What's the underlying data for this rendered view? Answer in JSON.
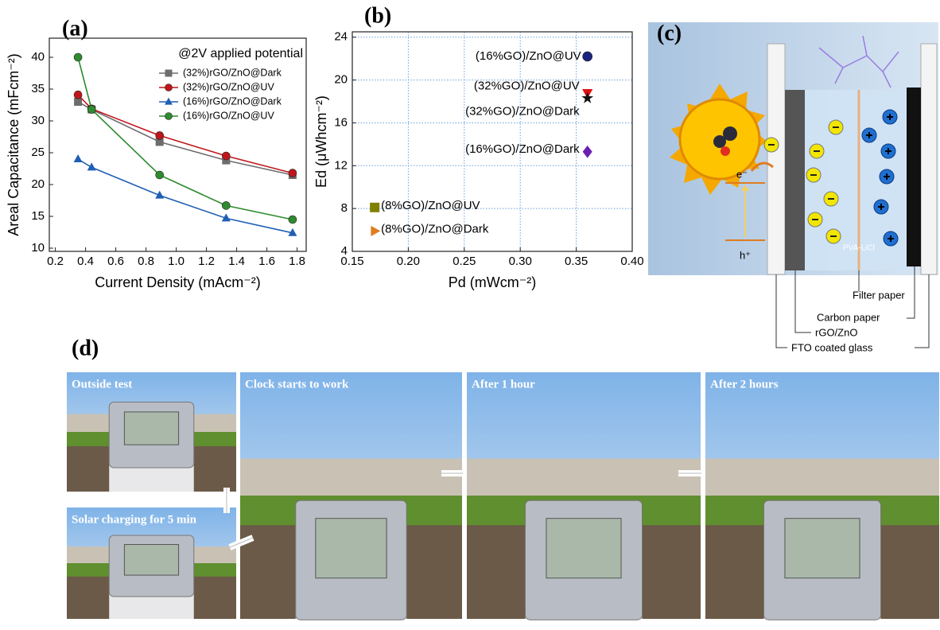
{
  "chart_data": [
    {
      "type": "line",
      "label": "(a)",
      "annotation": "@2V applied potential",
      "x_label": "Current Density (mAcm⁻²)",
      "y_label": "Areal Capacitance (mFcm⁻²)",
      "x": [
        0.35,
        0.44,
        0.89,
        1.33,
        1.77
      ],
      "series": [
        {
          "name": "(32%)rGO/ZnO@Dark",
          "color": "#6d6d6d",
          "marker": "square",
          "values": [
            33,
            31.8,
            26.7,
            23.8,
            21.5
          ]
        },
        {
          "name": "(32%)rGO/ZnO@UV",
          "color": "#c0161b",
          "marker": "circle",
          "values": [
            34.1,
            31.9,
            27.7,
            24.5,
            21.8
          ]
        },
        {
          "name": "(16%)rGO/ZnO@Dark",
          "color": "#1f5fb4",
          "marker": "triangle",
          "values": [
            24,
            22.7,
            18.3,
            14.7,
            12.4
          ]
        },
        {
          "name": "(16%)rGO/ZnO@UV",
          "color": "#2e8b2e",
          "marker": "circle",
          "values": [
            40,
            31.8,
            21.5,
            16.7,
            14.5
          ]
        }
      ],
      "xlim": [
        0.16,
        1.86
      ],
      "ylim": [
        9.5,
        43
      ],
      "xticks": [
        0.2,
        0.4,
        0.6,
        0.8,
        {
          "value": 1,
          "label": "1.0"
        },
        1.2,
        1.4,
        1.6,
        1.8
      ],
      "yticks": [
        10,
        15,
        20,
        25,
        30,
        35,
        40
      ],
      "grid": false,
      "legend": "upper right"
    },
    {
      "type": "scatter",
      "label": "(b)",
      "x_label": "Pd (mWcm⁻²)",
      "y_label": "Ed (μWhcm⁻²)",
      "series": [
        {
          "name": "(16%GO)/ZnO@UV",
          "color": "#1a237e",
          "marker": "circle",
          "x": [
            0.36
          ],
          "values": [
            22.2
          ]
        },
        {
          "name": "(32%GO)/ZnO@UV",
          "color": "#e01010",
          "marker": "triangle-down",
          "x": [
            0.36
          ],
          "values": [
            18.8
          ]
        },
        {
          "name": "(32%GO)/ZnO@Dark",
          "color": "#111111",
          "marker": "star",
          "x": [
            0.36
          ],
          "values": [
            18.3
          ]
        },
        {
          "name": "(16%GO)/ZnO@Dark",
          "color": "#6a1fb0",
          "marker": "diamond",
          "x": [
            0.36
          ],
          "values": [
            13.3
          ]
        },
        {
          "name": "(8%GO)/ZnO@UV",
          "color": "#808000",
          "marker": "square",
          "x": [
            0.17
          ],
          "values": [
            8.1
          ]
        },
        {
          "name": "(8%GO)/ZnO@Dark",
          "color": "#e07b20",
          "marker": "triangle-right",
          "x": [
            0.17
          ],
          "values": [
            5.9
          ]
        }
      ],
      "xlim": [
        0.15,
        0.4
      ],
      "ylim": [
        4,
        24.5
      ],
      "xticks": [
        0.15,
        {
          "value": 0.2,
          "label": "0.20"
        },
        0.25,
        {
          "value": 0.3,
          "label": "0.30"
        },
        0.35,
        {
          "value": 0.4,
          "label": "0.40"
        }
      ],
      "yticks": [
        4,
        8,
        12,
        16,
        20,
        24
      ],
      "grid": true
    }
  ],
  "panel_c": {
    "label": "(c)",
    "electron": "e⁻",
    "hole": "h⁺",
    "electrolyte": "PVA-LiCl",
    "layers": [
      "Filter paper",
      "Carbon paper",
      "rGO/ZnO",
      "FTO coated glass"
    ]
  },
  "panel_d": {
    "label": "(d)",
    "photos": [
      "Outside test",
      "Solar charging for 5 min",
      "Clock starts to work",
      "After 1 hour",
      "After 2 hours"
    ]
  }
}
